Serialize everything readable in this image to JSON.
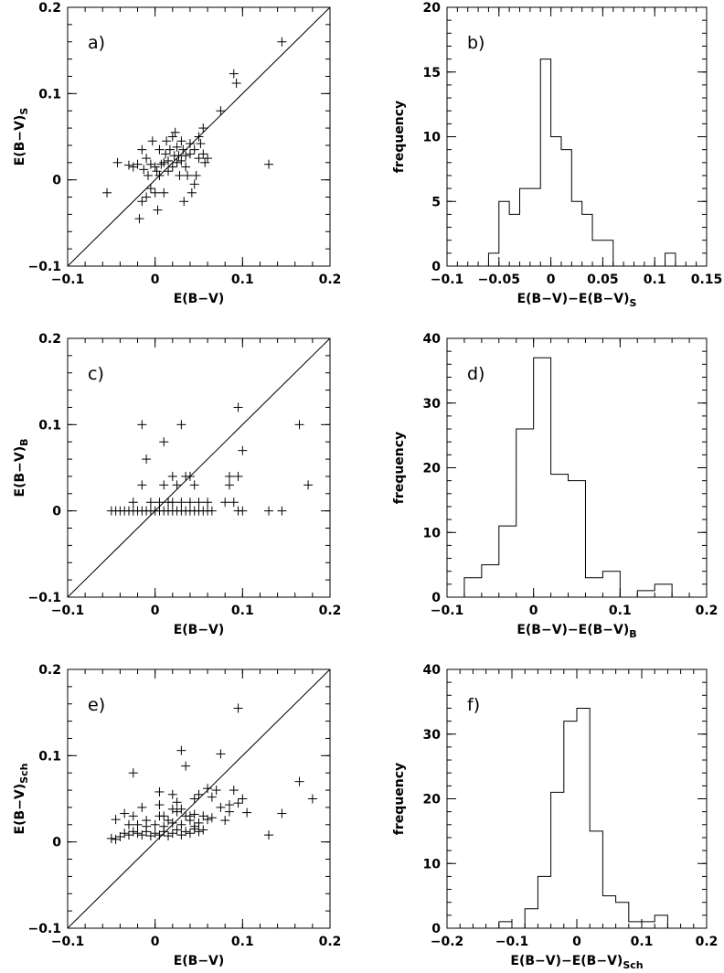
{
  "chart_data": [
    {
      "id": "a",
      "type": "scatter",
      "panel_label": "a)",
      "xlabel": "E(B−V)",
      "ylabel": "E(B−V)",
      "ylabel_sub": "S",
      "xlim": [
        -0.1,
        0.2
      ],
      "ylim": [
        -0.1,
        0.2
      ],
      "x_ticks": [
        -0.1,
        0,
        0.1,
        0.2
      ],
      "x_tick_labels": [
        "−0.1",
        "0",
        "0.1",
        "0.2"
      ],
      "y_ticks": [
        -0.1,
        0,
        0.1,
        0.2
      ],
      "y_tick_labels": [
        "−0.1",
        "0",
        "0.1",
        "0.2"
      ],
      "diagonal_line": true,
      "grid": false,
      "x": [
        -0.055,
        -0.043,
        -0.03,
        -0.025,
        -0.02,
        -0.018,
        -0.015,
        -0.015,
        -0.013,
        -0.01,
        -0.01,
        -0.008,
        -0.005,
        -0.005,
        -0.003,
        0,
        0,
        0.002,
        0.003,
        0.005,
        0.005,
        0.007,
        0.01,
        0.01,
        0.012,
        0.013,
        0.015,
        0.015,
        0.017,
        0.02,
        0.02,
        0.022,
        0.023,
        0.025,
        0.025,
        0.027,
        0.028,
        0.03,
        0.03,
        0.032,
        0.033,
        0.035,
        0.035,
        0.037,
        0.04,
        0.04,
        0.042,
        0.045,
        0.045,
        0.047,
        0.05,
        0.05,
        0.052,
        0.055,
        0.055,
        0.057,
        0.06,
        0.075,
        0.09,
        0.093,
        0.13,
        0.145
      ],
      "y": [
        -0.015,
        0.02,
        0.017,
        0.015,
        0.018,
        -0.045,
        -0.025,
        0.035,
        0.012,
        0.025,
        -0.02,
        0.005,
        0.018,
        -0.01,
        0.045,
        -0.015,
        0.015,
        0.01,
        -0.035,
        0.035,
        0.005,
        0.018,
        0.02,
        -0.015,
        0.03,
        0.045,
        0.01,
        0.022,
        0.035,
        0.05,
        0.015,
        0.028,
        0.055,
        0.038,
        0.02,
        0.028,
        0.005,
        0.045,
        0.022,
        0.035,
        -0.025,
        0.015,
        0.028,
        0.005,
        0.03,
        0.042,
        -0.015,
        0.035,
        -0.005,
        0.005,
        0.025,
        0.05,
        0.042,
        0.03,
        0.06,
        0.02,
        0.025,
        0.08,
        0.123,
        0.112,
        0.018,
        0.16
      ]
    },
    {
      "id": "b",
      "type": "histogram",
      "panel_label": "b)",
      "xlabel": "E(B−V)−E(B−V)",
      "xlabel_sub": "S",
      "ylabel": "frequency",
      "xlim": [
        -0.1,
        0.15
      ],
      "ylim": [
        0,
        20
      ],
      "x_ticks": [
        -0.1,
        -0.05,
        0,
        0.05,
        0.1,
        0.15
      ],
      "x_tick_labels": [
        "−0.1",
        "−0.05",
        "0",
        "0.05",
        "0.1",
        "0.15"
      ],
      "y_ticks": [
        0,
        5,
        10,
        15,
        20
      ],
      "y_tick_labels": [
        "0",
        "5",
        "10",
        "15",
        "20"
      ],
      "bin_edges": [
        -0.1,
        -0.09,
        -0.08,
        -0.07,
        -0.06,
        -0.05,
        -0.04,
        -0.03,
        -0.02,
        -0.01,
        0,
        0.01,
        0.02,
        0.03,
        0.04,
        0.05,
        0.06,
        0.07,
        0.08,
        0.09,
        0.1,
        0.11,
        0.12,
        0.13,
        0.14,
        0.15
      ],
      "counts": [
        0,
        0,
        0,
        0,
        1,
        5,
        4,
        6,
        6,
        16,
        10,
        9,
        5,
        4,
        2,
        2,
        0,
        0,
        0,
        0,
        0,
        1,
        0,
        0,
        0
      ]
    },
    {
      "id": "c",
      "type": "scatter",
      "panel_label": "c)",
      "xlabel": "E(B−V)",
      "ylabel": "E(B−V)",
      "ylabel_sub": "B",
      "xlim": [
        -0.1,
        0.2
      ],
      "ylim": [
        -0.1,
        0.2
      ],
      "x_ticks": [
        -0.1,
        0,
        0.1,
        0.2
      ],
      "x_tick_labels": [
        "−0.1",
        "0",
        "0.1",
        "0.2"
      ],
      "y_ticks": [
        -0.1,
        0,
        0.1,
        0.2
      ],
      "y_tick_labels": [
        "−0.1",
        "0",
        "0.1",
        "0.2"
      ],
      "diagonal_line": true,
      "grid": false,
      "x": [
        -0.05,
        -0.045,
        -0.04,
        -0.035,
        -0.03,
        -0.025,
        -0.02,
        -0.015,
        -0.01,
        -0.005,
        0,
        0.005,
        0.01,
        0.015,
        0.02,
        0.025,
        0.03,
        0.035,
        0.04,
        0.045,
        0.05,
        0.055,
        0.06,
        0.065,
        -0.025,
        -0.005,
        0.005,
        0.015,
        0.02,
        0.03,
        0.04,
        0.05,
        0.06,
        0.08,
        0.09,
        0.1,
        0.095,
        0.13,
        0.145,
        -0.015,
        0.01,
        0.025,
        0.035,
        0.045,
        0.085,
        0.095,
        -0.015,
        0.03,
        0.095,
        0.165,
        -0.01,
        0.01,
        0.1,
        0.02,
        0.04,
        0.085,
        0.175
      ],
      "y": [
        0,
        0,
        0,
        0,
        0,
        0,
        0,
        0,
        0,
        0,
        0,
        0,
        0,
        0,
        0,
        0,
        0,
        0,
        0,
        0,
        0,
        0,
        0,
        0,
        0.01,
        0.01,
        0.01,
        0.01,
        0.01,
        0.01,
        0.01,
        0.01,
        0.01,
        0.01,
        0.01,
        0,
        0,
        0,
        0,
        0.03,
        0.03,
        0.03,
        0.04,
        0.03,
        0.03,
        0.04,
        0.1,
        0.1,
        0.12,
        0.1,
        0.06,
        0.08,
        0.07,
        0.04,
        0.04,
        0.04,
        0.03
      ]
    },
    {
      "id": "d",
      "type": "histogram",
      "panel_label": "d)",
      "xlabel": "E(B−V)−E(B−V)",
      "xlabel_sub": "B",
      "ylabel": "frequency",
      "xlim": [
        -0.1,
        0.2
      ],
      "ylim": [
        0,
        40
      ],
      "x_ticks": [
        -0.1,
        0,
        0.1,
        0.2
      ],
      "x_tick_labels": [
        "−0.1",
        "0",
        "0.1",
        "0.2"
      ],
      "y_ticks": [
        0,
        10,
        20,
        30,
        40
      ],
      "y_tick_labels": [
        "0",
        "10",
        "20",
        "30",
        "40"
      ],
      "bin_edges": [
        -0.08,
        -0.06,
        -0.04,
        -0.02,
        0,
        0.02,
        0.04,
        0.06,
        0.08,
        0.1,
        0.12,
        0.14,
        0.16,
        0.18
      ],
      "counts": [
        3,
        5,
        11,
        26,
        37,
        19,
        18,
        3,
        4,
        0,
        1,
        2,
        0
      ]
    },
    {
      "id": "e",
      "type": "scatter",
      "panel_label": "e)",
      "xlabel": "E(B−V)",
      "ylabel": "E(B−V)",
      "ylabel_sub": "Sch",
      "xlim": [
        -0.1,
        0.2
      ],
      "ylim": [
        -0.1,
        0.2
      ],
      "x_ticks": [
        -0.1,
        0,
        0.1,
        0.2
      ],
      "x_tick_labels": [
        "−0.1",
        "0",
        "0.1",
        "0.2"
      ],
      "y_ticks": [
        -0.1,
        0,
        0.1,
        0.2
      ],
      "y_tick_labels": [
        "−0.1",
        "0",
        "0.1",
        "0.2"
      ],
      "diagonal_line": true,
      "grid": false,
      "x": [
        -0.05,
        -0.045,
        -0.04,
        -0.035,
        -0.03,
        -0.025,
        -0.02,
        -0.015,
        -0.01,
        -0.005,
        0,
        0.005,
        0.01,
        0.015,
        0.02,
        0.025,
        0.03,
        0.035,
        0.04,
        0.045,
        0.05,
        0.055,
        -0.045,
        -0.03,
        -0.02,
        -0.01,
        0,
        0.01,
        0.02,
        0.03,
        0.04,
        0.05,
        0.06,
        -0.025,
        0.005,
        0.015,
        0.025,
        0.035,
        0.045,
        0.055,
        0.065,
        0.075,
        0.085,
        0.095,
        -0.035,
        -0.015,
        0.005,
        0.025,
        0.045,
        0.065,
        0.085,
        0.105,
        -0.01,
        0.01,
        0.03,
        0.05,
        0.07,
        0.09,
        0.1,
        0.13,
        0.145,
        0.165,
        0.18,
        -0.025,
        0.03,
        0.035,
        0.075,
        0.095,
        0.06,
        0.005,
        0.02,
        0.04,
        0.08,
        0.02,
        0.045
      ],
      "y": [
        0.004,
        0.003,
        0.006,
        0.01,
        0.008,
        0.012,
        0.01,
        0.008,
        0.012,
        0.007,
        0.01,
        0.008,
        0.012,
        0.007,
        0.01,
        0.014,
        0.008,
        0.012,
        0.01,
        0.015,
        0.012,
        0.014,
        0.026,
        0.02,
        0.02,
        0.018,
        0.02,
        0.018,
        0.022,
        0.02,
        0.025,
        0.022,
        0.026,
        0.03,
        0.03,
        0.025,
        0.035,
        0.03,
        0.032,
        0.03,
        0.028,
        0.04,
        0.035,
        0.045,
        0.033,
        0.04,
        0.058,
        0.046,
        0.05,
        0.052,
        0.043,
        0.034,
        0.025,
        0.03,
        0.038,
        0.055,
        0.06,
        0.06,
        0.05,
        0.008,
        0.033,
        0.07,
        0.05,
        0.08,
        0.106,
        0.088,
        0.102,
        0.155,
        0.062,
        0.043,
        0.038,
        0.03,
        0.025,
        0.055,
        0.018
      ]
    },
    {
      "id": "f",
      "type": "histogram",
      "panel_label": "f)",
      "xlabel": "E(B−V)−E(B−V)",
      "xlabel_sub": "Sch",
      "ylabel": "frequency",
      "xlim": [
        -0.2,
        0.2
      ],
      "ylim": [
        0,
        40
      ],
      "x_ticks": [
        -0.2,
        -0.1,
        0,
        0.1,
        0.2
      ],
      "x_tick_labels": [
        "−0.2",
        "−0.1",
        "0",
        "0.1",
        "0.2"
      ],
      "y_ticks": [
        0,
        10,
        20,
        30,
        40
      ],
      "y_tick_labels": [
        "0",
        "10",
        "20",
        "30",
        "40"
      ],
      "bin_edges": [
        -0.2,
        -0.18,
        -0.16,
        -0.14,
        -0.12,
        -0.1,
        -0.08,
        -0.06,
        -0.04,
        -0.02,
        0,
        0.02,
        0.04,
        0.06,
        0.08,
        0.1,
        0.12,
        0.14,
        0.16,
        0.18,
        0.2
      ],
      "counts": [
        0,
        0,
        0,
        0,
        1,
        0,
        3,
        8,
        21,
        32,
        34,
        15,
        5,
        4,
        1,
        1,
        2,
        0,
        0,
        0
      ]
    }
  ]
}
